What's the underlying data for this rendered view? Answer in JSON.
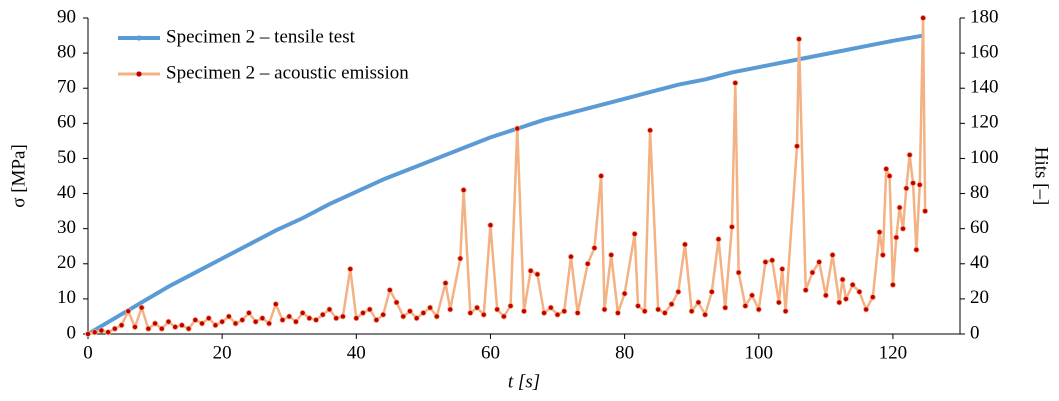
{
  "chart_data": {
    "type": "line",
    "xlabel": "t [s]",
    "ylabel": "σ [MPa]",
    "y2label": "Hits [–]",
    "xlim": [
      0,
      130
    ],
    "xticks": [
      0,
      20,
      40,
      60,
      80,
      100,
      120
    ],
    "ylim": [
      0,
      90
    ],
    "yticks": [
      0,
      10,
      20,
      30,
      40,
      50,
      60,
      70,
      80,
      90
    ],
    "y2lim": [
      0,
      180
    ],
    "y2ticks": [
      0,
      20,
      40,
      60,
      80,
      100,
      120,
      140,
      160,
      180
    ],
    "grid": false,
    "legend": "upper left",
    "series": [
      {
        "name": "Specimen 2 – tensile test",
        "color": "#5b9bd5",
        "x": [
          0,
          4,
          8,
          12,
          16,
          20,
          24,
          28,
          32,
          36,
          40,
          44,
          48,
          52,
          56,
          60,
          64,
          68,
          72,
          76,
          80,
          84,
          88,
          92,
          96,
          100,
          104,
          108,
          112,
          116,
          120,
          123,
          124.5
        ],
        "values": [
          0,
          4.5,
          9,
          13.5,
          17.5,
          21.5,
          25.5,
          29.5,
          33,
          37,
          40.5,
          44,
          47,
          50,
          53,
          56,
          58.5,
          61,
          63,
          65,
          67,
          69,
          71,
          72.5,
          74.5,
          76,
          77.5,
          79,
          80.5,
          82,
          83.5,
          84.5,
          85
        ]
      },
      {
        "name": "Specimen 2 – acoustic emission",
        "color": "#f4b183",
        "marker_color": "#c00000",
        "axis": "y2",
        "x": [
          0,
          1,
          2,
          3,
          4,
          5,
          6,
          7,
          8,
          9,
          10,
          11,
          12,
          13,
          14,
          15,
          16,
          17,
          18,
          19,
          20,
          21,
          22,
          23,
          24,
          25,
          26,
          27,
          28,
          29,
          30,
          31,
          32,
          33,
          34,
          35,
          36,
          37,
          38,
          39.1,
          40,
          41,
          42,
          43,
          44,
          45,
          46,
          47,
          48,
          49,
          50,
          51,
          52,
          53.3,
          54,
          55.5,
          56,
          57,
          58,
          59,
          60,
          61,
          62,
          63,
          64,
          65,
          66,
          67,
          68,
          69,
          70,
          71,
          72,
          73,
          74.5,
          75.5,
          76.5,
          77,
          78,
          79,
          80,
          81.5,
          82,
          83,
          83.8,
          85,
          86,
          87,
          88,
          89,
          90,
          91,
          92,
          93,
          94,
          95,
          96,
          96.5,
          97,
          98,
          99,
          100,
          101,
          102,
          103,
          103.5,
          104,
          105.7,
          106,
          107,
          108,
          109,
          110,
          111,
          112,
          112.5,
          113,
          114,
          115,
          116,
          117,
          118,
          118.5,
          119,
          119.5,
          120,
          120.5,
          121,
          121.5,
          122,
          122.5,
          123,
          123.5,
          124,
          124.5,
          124.8
        ],
        "values": [
          0,
          1,
          2,
          1,
          3,
          5,
          13,
          4,
          15,
          3,
          6,
          3,
          7,
          4,
          5,
          3,
          8,
          6,
          9,
          5,
          7,
          10,
          6,
          8,
          12,
          7,
          9,
          6,
          17,
          8,
          10,
          7,
          12,
          9,
          8,
          11,
          14,
          9,
          10,
          37,
          9,
          12,
          14,
          8,
          11,
          25,
          18,
          10,
          13,
          9,
          12,
          15,
          10,
          29,
          14,
          43,
          82,
          12,
          15,
          11,
          62,
          14,
          10,
          16,
          117,
          13,
          36,
          34,
          12,
          15,
          11,
          13,
          44,
          12,
          40,
          49,
          90,
          14,
          45,
          12,
          23,
          57,
          16,
          13,
          116,
          14,
          12,
          17,
          24,
          51,
          13,
          18,
          11,
          24,
          54,
          15,
          61,
          143,
          35,
          16,
          22,
          14,
          41,
          42,
          18,
          37,
          13,
          107,
          168,
          25,
          35,
          41,
          22,
          45,
          18,
          31,
          20,
          28,
          24,
          14,
          21,
          58,
          45,
          94,
          90,
          28,
          55,
          72,
          60,
          83,
          102,
          86,
          48,
          85,
          180,
          70
        ]
      }
    ]
  }
}
